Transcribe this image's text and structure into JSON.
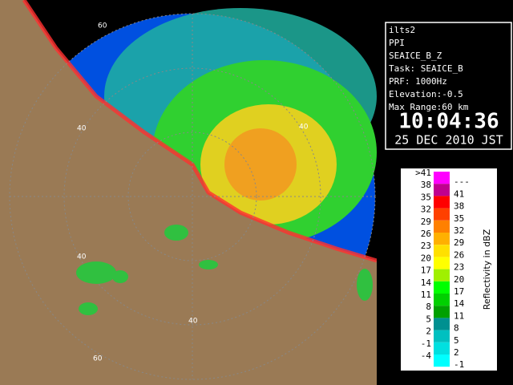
{
  "info": {
    "lines": [
      "ilts2",
      "PPI",
      "SEAICE_B_Z",
      "Task: SEAICE_B",
      "PRF: 1000Hz",
      "Elevation:-0.5",
      "Max Range:60 km"
    ],
    "time": "10:04:36",
    "date": "25 DEC 2010 JST"
  },
  "map": {
    "ring_labels": [
      "60",
      "40",
      "40",
      "40",
      "40",
      "60"
    ]
  },
  "legend": {
    "title": "Reflectivity in dBZ",
    "rows": [
      {
        "low": ">41",
        "high": "---",
        "color": "#ff00ff"
      },
      {
        "low": "38",
        "high": "41",
        "color": "#c00090"
      },
      {
        "low": "35",
        "high": "38",
        "color": "#ff0000"
      },
      {
        "low": "32",
        "high": "35",
        "color": "#ff4000"
      },
      {
        "low": "29",
        "high": "32",
        "color": "#ff8000"
      },
      {
        "low": "26",
        "high": "29",
        "color": "#ffb000"
      },
      {
        "low": "23",
        "high": "26",
        "color": "#ffe000"
      },
      {
        "low": "20",
        "high": "23",
        "color": "#ffff00"
      },
      {
        "low": "17",
        "high": "20",
        "color": "#a0f000"
      },
      {
        "low": "14",
        "high": "17",
        "color": "#00ff00"
      },
      {
        "low": "11",
        "high": "14",
        "color": "#00d000"
      },
      {
        "low": "8",
        "high": "11",
        "color": "#00a000"
      },
      {
        "low": "5",
        "high": "8",
        "color": "#009090"
      },
      {
        "low": "2",
        "high": "5",
        "color": "#00c0c0"
      },
      {
        "low": "-1",
        "high": "2",
        "color": "#00e0e0"
      },
      {
        "low": "-4",
        "high": "-1",
        "color": "#00ffff"
      }
    ]
  }
}
